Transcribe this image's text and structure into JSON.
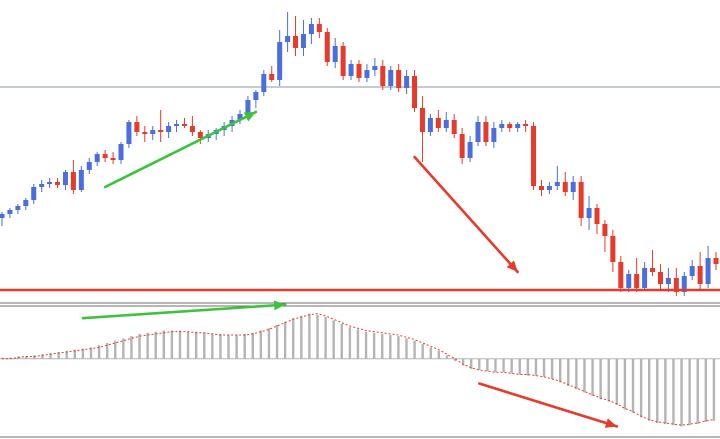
{
  "chart_data": [
    {
      "type": "candlestick",
      "colors": {
        "up": "#4a6ee0",
        "down": "#e83a2a",
        "level": "#e83a2a",
        "reference": "#8a97a6",
        "up_arrow": "#3bc43b",
        "down_arrow": "#e83a2a"
      },
      "ylim": [
        0,
        290
      ],
      "reference_level": 205,
      "support_level": 2,
      "annotations": [
        {
          "type": "arrow",
          "direction": "up",
          "from": [
            13,
            105
          ],
          "to": [
            32,
            180
          ],
          "color": "#3bc43b"
        },
        {
          "type": "arrow",
          "direction": "down",
          "from": [
            52,
            135
          ],
          "to": [
            65,
            20
          ],
          "color": "#e83a2a"
        }
      ],
      "candles": [
        {
          "o": 74,
          "h": 80,
          "l": 66,
          "c": 78
        },
        {
          "o": 78,
          "h": 84,
          "l": 74,
          "c": 82
        },
        {
          "o": 82,
          "h": 88,
          "l": 78,
          "c": 86
        },
        {
          "o": 86,
          "h": 94,
          "l": 82,
          "c": 92
        },
        {
          "o": 92,
          "h": 108,
          "l": 88,
          "c": 105
        },
        {
          "o": 105,
          "h": 112,
          "l": 100,
          "c": 108
        },
        {
          "o": 108,
          "h": 114,
          "l": 104,
          "c": 110
        },
        {
          "o": 110,
          "h": 114,
          "l": 104,
          "c": 107
        },
        {
          "o": 107,
          "h": 122,
          "l": 102,
          "c": 120
        },
        {
          "o": 120,
          "h": 132,
          "l": 98,
          "c": 102
        },
        {
          "o": 102,
          "h": 126,
          "l": 100,
          "c": 122
        },
        {
          "o": 122,
          "h": 134,
          "l": 118,
          "c": 130
        },
        {
          "o": 130,
          "h": 140,
          "l": 126,
          "c": 138
        },
        {
          "o": 138,
          "h": 142,
          "l": 130,
          "c": 134
        },
        {
          "o": 134,
          "h": 140,
          "l": 128,
          "c": 132
        },
        {
          "o": 132,
          "h": 150,
          "l": 128,
          "c": 148
        },
        {
          "o": 148,
          "h": 172,
          "l": 144,
          "c": 170
        },
        {
          "o": 170,
          "h": 176,
          "l": 156,
          "c": 160
        },
        {
          "o": 160,
          "h": 166,
          "l": 150,
          "c": 158
        },
        {
          "o": 158,
          "h": 166,
          "l": 152,
          "c": 162
        },
        {
          "o": 162,
          "h": 182,
          "l": 150,
          "c": 160
        },
        {
          "o": 160,
          "h": 170,
          "l": 154,
          "c": 166
        },
        {
          "o": 166,
          "h": 172,
          "l": 160,
          "c": 168
        },
        {
          "o": 168,
          "h": 174,
          "l": 164,
          "c": 166
        },
        {
          "o": 166,
          "h": 176,
          "l": 156,
          "c": 160
        },
        {
          "o": 160,
          "h": 162,
          "l": 148,
          "c": 154
        },
        {
          "o": 154,
          "h": 162,
          "l": 150,
          "c": 158
        },
        {
          "o": 158,
          "h": 164,
          "l": 152,
          "c": 162
        },
        {
          "o": 162,
          "h": 170,
          "l": 156,
          "c": 166
        },
        {
          "o": 166,
          "h": 176,
          "l": 160,
          "c": 172
        },
        {
          "o": 172,
          "h": 182,
          "l": 168,
          "c": 178
        },
        {
          "o": 178,
          "h": 196,
          "l": 176,
          "c": 192
        },
        {
          "o": 192,
          "h": 202,
          "l": 184,
          "c": 200
        },
        {
          "o": 200,
          "h": 222,
          "l": 196,
          "c": 218
        },
        {
          "o": 218,
          "h": 226,
          "l": 210,
          "c": 212
        },
        {
          "o": 212,
          "h": 262,
          "l": 206,
          "c": 250
        },
        {
          "o": 250,
          "h": 280,
          "l": 240,
          "c": 256
        },
        {
          "o": 256,
          "h": 276,
          "l": 236,
          "c": 244
        },
        {
          "o": 244,
          "h": 272,
          "l": 236,
          "c": 258
        },
        {
          "o": 258,
          "h": 274,
          "l": 248,
          "c": 268
        },
        {
          "o": 268,
          "h": 274,
          "l": 254,
          "c": 260
        },
        {
          "o": 260,
          "h": 264,
          "l": 226,
          "c": 230
        },
        {
          "o": 230,
          "h": 254,
          "l": 224,
          "c": 246
        },
        {
          "o": 246,
          "h": 250,
          "l": 212,
          "c": 216
        },
        {
          "o": 216,
          "h": 232,
          "l": 212,
          "c": 228
        },
        {
          "o": 228,
          "h": 232,
          "l": 210,
          "c": 214
        },
        {
          "o": 214,
          "h": 228,
          "l": 210,
          "c": 222
        },
        {
          "o": 222,
          "h": 234,
          "l": 216,
          "c": 226
        },
        {
          "o": 226,
          "h": 232,
          "l": 202,
          "c": 206
        },
        {
          "o": 206,
          "h": 226,
          "l": 202,
          "c": 222
        },
        {
          "o": 222,
          "h": 228,
          "l": 200,
          "c": 204
        },
        {
          "o": 204,
          "h": 222,
          "l": 198,
          "c": 216
        },
        {
          "o": 216,
          "h": 222,
          "l": 180,
          "c": 184
        },
        {
          "o": 184,
          "h": 196,
          "l": 130,
          "c": 160
        },
        {
          "o": 160,
          "h": 178,
          "l": 156,
          "c": 174
        },
        {
          "o": 174,
          "h": 182,
          "l": 160,
          "c": 164
        },
        {
          "o": 164,
          "h": 180,
          "l": 160,
          "c": 172
        },
        {
          "o": 172,
          "h": 178,
          "l": 154,
          "c": 158
        },
        {
          "o": 158,
          "h": 164,
          "l": 128,
          "c": 134
        },
        {
          "o": 134,
          "h": 156,
          "l": 130,
          "c": 150
        },
        {
          "o": 150,
          "h": 176,
          "l": 146,
          "c": 170
        },
        {
          "o": 170,
          "h": 176,
          "l": 146,
          "c": 150
        },
        {
          "o": 150,
          "h": 170,
          "l": 144,
          "c": 164
        },
        {
          "o": 164,
          "h": 172,
          "l": 160,
          "c": 168
        },
        {
          "o": 168,
          "h": 170,
          "l": 160,
          "c": 164
        },
        {
          "o": 164,
          "h": 170,
          "l": 160,
          "c": 168
        },
        {
          "o": 168,
          "h": 172,
          "l": 160,
          "c": 166
        },
        {
          "o": 166,
          "h": 170,
          "l": 102,
          "c": 106
        },
        {
          "o": 106,
          "h": 112,
          "l": 96,
          "c": 102
        },
        {
          "o": 102,
          "h": 110,
          "l": 98,
          "c": 106
        },
        {
          "o": 106,
          "h": 126,
          "l": 102,
          "c": 110
        },
        {
          "o": 110,
          "h": 120,
          "l": 96,
          "c": 100
        },
        {
          "o": 100,
          "h": 116,
          "l": 92,
          "c": 110
        },
        {
          "o": 110,
          "h": 116,
          "l": 66,
          "c": 74
        },
        {
          "o": 74,
          "h": 96,
          "l": 62,
          "c": 84
        },
        {
          "o": 84,
          "h": 88,
          "l": 58,
          "c": 68
        },
        {
          "o": 68,
          "h": 72,
          "l": 40,
          "c": 56
        },
        {
          "o": 56,
          "h": 62,
          "l": 20,
          "c": 30
        },
        {
          "o": 30,
          "h": 36,
          "l": 0,
          "c": 4
        },
        {
          "o": 4,
          "h": 22,
          "l": 0,
          "c": 18
        },
        {
          "o": 18,
          "h": 34,
          "l": 0,
          "c": 4
        },
        {
          "o": 4,
          "h": 30,
          "l": 2,
          "c": 24
        },
        {
          "o": 24,
          "h": 42,
          "l": 16,
          "c": 20
        },
        {
          "o": 20,
          "h": 28,
          "l": 2,
          "c": 8
        },
        {
          "o": 8,
          "h": 24,
          "l": 0,
          "c": 14
        },
        {
          "o": 14,
          "h": 24,
          "l": -4,
          "c": 0
        },
        {
          "o": 0,
          "h": 20,
          "l": -4,
          "c": 16
        },
        {
          "o": 16,
          "h": 32,
          "l": 12,
          "c": 26
        },
        {
          "o": 26,
          "h": 40,
          "l": 2,
          "c": 8
        },
        {
          "o": 8,
          "h": 46,
          "l": 4,
          "c": 34
        },
        {
          "o": 34,
          "h": 40,
          "l": 22,
          "c": 28
        }
      ]
    },
    {
      "type": "histogram",
      "colors": {
        "bar": "#b4b4b4",
        "signal": "#e83a2a",
        "zero": "#b4b4b4",
        "up_arrow": "#3bc43b",
        "down_arrow": "#e83a2a"
      },
      "ylim": [
        -65,
        45
      ],
      "annotations": [
        {
          "type": "arrow",
          "direction": "up",
          "from": [
            10,
            36
          ],
          "to": [
            35,
            48
          ],
          "color": "#3bc43b"
        },
        {
          "type": "arrow",
          "direction": "down",
          "from": [
            59,
            -22
          ],
          "to": [
            76,
            -60
          ],
          "color": "#e83a2a"
        }
      ],
      "values": [
        1,
        1,
        2,
        2,
        3,
        4,
        5,
        6,
        7,
        8,
        9,
        10,
        12,
        14,
        16,
        18,
        20,
        22,
        23,
        24,
        25,
        25,
        25,
        24,
        24,
        23,
        22,
        22,
        21,
        21,
        22,
        23,
        25,
        27,
        30,
        33,
        36,
        38,
        40,
        39,
        37,
        34,
        31,
        28,
        26,
        24,
        23,
        22,
        21,
        20,
        18,
        16,
        13,
        10,
        7,
        3,
        -2,
        -6,
        -9,
        -10,
        -11,
        -12,
        -12,
        -13,
        -14,
        -15,
        -15,
        -16,
        -18,
        -21,
        -24,
        -27,
        -30,
        -33,
        -36,
        -38,
        -41,
        -45,
        -48,
        -52,
        -55,
        -57,
        -58,
        -59,
        -60,
        -59,
        -58,
        -56,
        -55
      ],
      "signal": [
        0,
        0,
        1,
        2,
        2,
        3,
        4,
        5,
        6,
        7,
        8,
        9,
        10,
        12,
        14,
        16,
        18,
        20,
        21,
        22,
        23,
        24,
        24,
        24,
        23,
        23,
        22,
        21,
        21,
        21,
        21,
        22,
        24,
        26,
        29,
        32,
        35,
        37,
        39,
        40,
        38,
        35,
        32,
        29,
        27,
        25,
        24,
        23,
        22,
        21,
        19,
        17,
        14,
        11,
        8,
        4,
        0,
        -5,
        -8,
        -10,
        -11,
        -12,
        -12,
        -13,
        -14,
        -14,
        -15,
        -16,
        -18,
        -20,
        -23,
        -26,
        -29,
        -32,
        -35,
        -37,
        -40,
        -44,
        -47,
        -51,
        -54,
        -56,
        -57,
        -58,
        -59,
        -58,
        -57,
        -55,
        -54
      ]
    }
  ]
}
